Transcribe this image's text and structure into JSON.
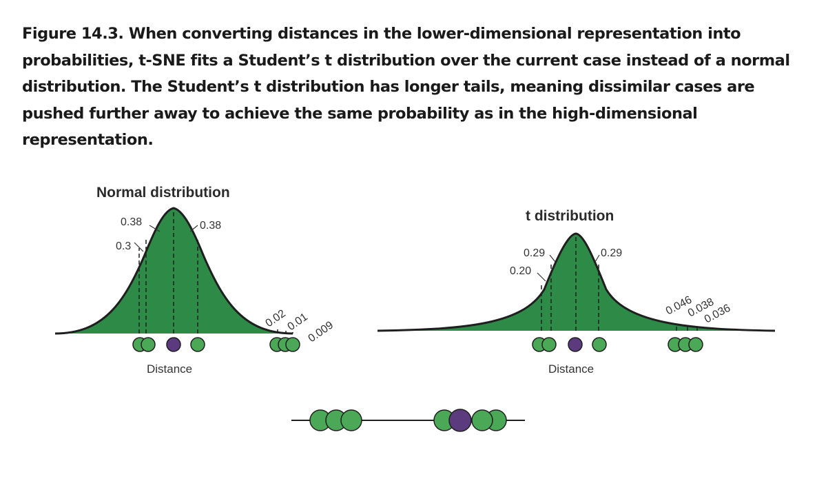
{
  "caption": "Figure 14.3. When converting distances in the lower-dimensional representation into probabilities, t-SNE fits a Student’s t distribution over the current case instead of a normal distribution. The Student’s t distribution has longer tails, meaning dissimilar cases are pushed further away to achieve the same probability as in the high-dimensional representation.",
  "colors": {
    "fill": "#2e8b47",
    "point_green": "#4aa857",
    "point_purple": "#5b3a7e",
    "stroke": "#1f1f1f"
  },
  "normal": {
    "title": "Normal distribution",
    "axis_label": "Distance",
    "labels": {
      "top_left": "0.38",
      "top_right": "0.38",
      "left_low": "0.3",
      "tail_1": "0.02",
      "tail_2": "0.01",
      "tail_3": "0.009"
    }
  },
  "t": {
    "title": "t distribution",
    "axis_label": "Distance",
    "labels": {
      "top_left": "0.29",
      "top_right": "0.29",
      "left_low": "0.20",
      "tail_1": "0.046",
      "tail_2": "0.038",
      "tail_3": "0.036"
    }
  }
}
